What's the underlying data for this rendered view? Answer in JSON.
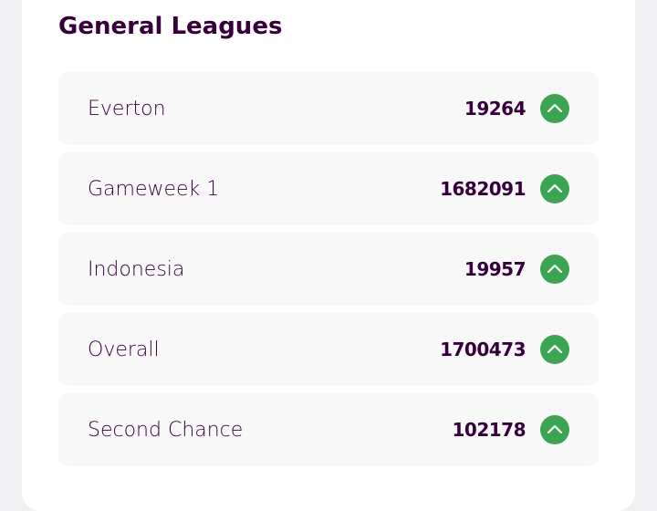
{
  "header": {
    "title": "General Leagues"
  },
  "leagues": [
    {
      "name": "Everton",
      "rank": 19264
    },
    {
      "name": "Gameweek 1",
      "rank": 1682091
    },
    {
      "name": "Indonesia",
      "rank": 19957
    },
    {
      "name": "Overall",
      "rank": 1700473
    },
    {
      "name": "Second Chance",
      "rank": 102178
    }
  ]
}
